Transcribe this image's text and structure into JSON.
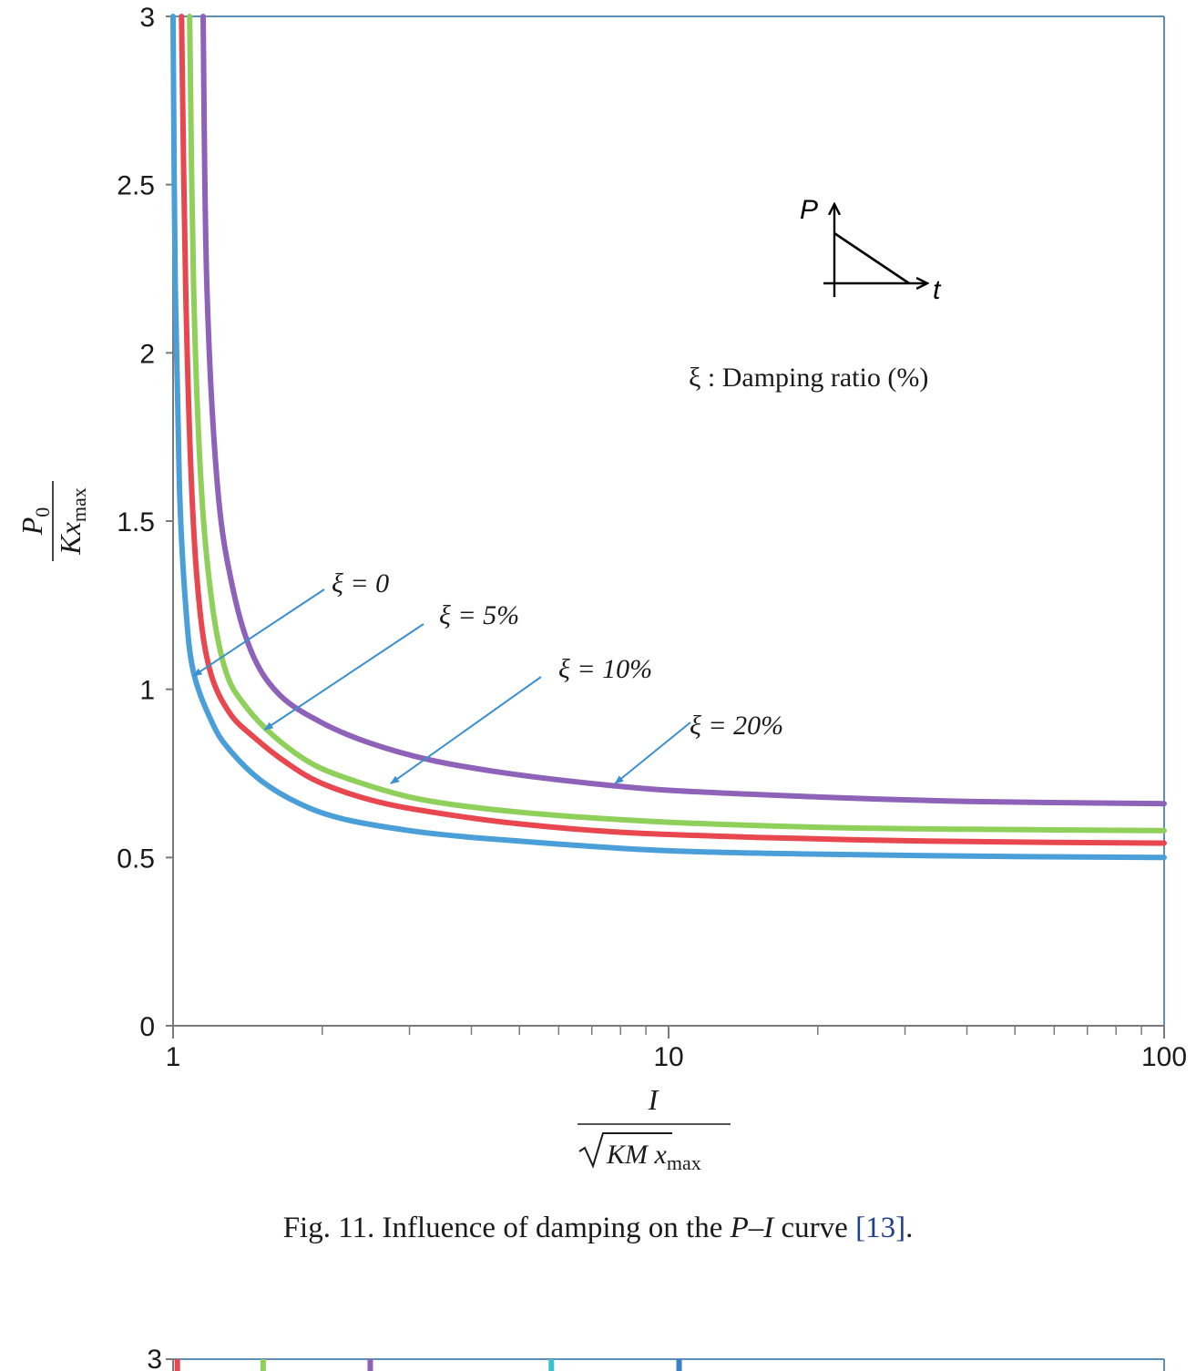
{
  "chart_data": [
    {
      "type": "line",
      "x_scale": "log",
      "xlim": [
        1,
        100
      ],
      "ylim": [
        0,
        3
      ],
      "x_ticks": [
        "1",
        "10",
        "100"
      ],
      "y_ticks": [
        "0",
        "0.5",
        "1",
        "1.5",
        "2",
        "2.5",
        "3"
      ],
      "ylabel": {
        "numerator": "P0",
        "num_main": "P",
        "num_sub": "0",
        "denominator": "Kxmax",
        "den_main": "Kx",
        "den_sub": "max"
      },
      "xlabel": {
        "numerator": "I",
        "denominator": "√(KM xmax)",
        "den_main": "KM x",
        "den_sub": "max"
      },
      "legend_note": "ξ : Damping ratio (%)",
      "inset": {
        "p_label": "P",
        "t_label": "t"
      },
      "colors": {
        "axis": "#5b8fb9",
        "xi0": "#4a9fd8",
        "xi5": "#e8474f",
        "xi10": "#8ed05a",
        "xi20": "#8e62b8",
        "arrow": "#3a8fd0"
      },
      "series": [
        {
          "name": "ξ = 0",
          "color": "#4a9fd8",
          "points": [
            [
              1.0,
              3.0
            ],
            [
              1.01,
              2.2
            ],
            [
              1.03,
              1.6
            ],
            [
              1.06,
              1.25
            ],
            [
              1.1,
              1.05
            ],
            [
              1.2,
              0.9
            ],
            [
              1.3,
              0.82
            ],
            [
              1.5,
              0.73
            ],
            [
              1.8,
              0.66
            ],
            [
              2.2,
              0.615
            ],
            [
              3,
              0.58
            ],
            [
              4,
              0.56
            ],
            [
              6,
              0.54
            ],
            [
              10,
              0.52
            ],
            [
              20,
              0.51
            ],
            [
              50,
              0.503
            ],
            [
              100,
              0.5
            ]
          ]
        },
        {
          "name": "ξ = 5%",
          "color": "#e8474f",
          "points": [
            [
              1.04,
              3.0
            ],
            [
              1.06,
              2.2
            ],
            [
              1.09,
              1.6
            ],
            [
              1.13,
              1.25
            ],
            [
              1.19,
              1.05
            ],
            [
              1.3,
              0.93
            ],
            [
              1.45,
              0.86
            ],
            [
              1.7,
              0.78
            ],
            [
              2.0,
              0.72
            ],
            [
              2.6,
              0.665
            ],
            [
              3.5,
              0.63
            ],
            [
              5,
              0.6
            ],
            [
              8,
              0.575
            ],
            [
              15,
              0.56
            ],
            [
              30,
              0.55
            ],
            [
              60,
              0.545
            ],
            [
              100,
              0.543
            ]
          ]
        },
        {
          "name": "ξ = 10%",
          "color": "#8ed05a",
          "points": [
            [
              1.08,
              3.0
            ],
            [
              1.1,
              2.2
            ],
            [
              1.14,
              1.6
            ],
            [
              1.2,
              1.25
            ],
            [
              1.28,
              1.05
            ],
            [
              1.4,
              0.95
            ],
            [
              1.6,
              0.86
            ],
            [
              1.9,
              0.78
            ],
            [
              2.3,
              0.73
            ],
            [
              3,
              0.68
            ],
            [
              4,
              0.65
            ],
            [
              6,
              0.625
            ],
            [
              10,
              0.605
            ],
            [
              20,
              0.59
            ],
            [
              40,
              0.584
            ],
            [
              100,
              0.58
            ]
          ]
        },
        {
          "name": "ξ = 20%",
          "color": "#8e62b8",
          "points": [
            [
              1.15,
              3.0
            ],
            [
              1.17,
              2.2
            ],
            [
              1.23,
              1.6
            ],
            [
              1.32,
              1.3
            ],
            [
              1.45,
              1.1
            ],
            [
              1.65,
              0.98
            ],
            [
              2.0,
              0.9
            ],
            [
              2.5,
              0.84
            ],
            [
              3.3,
              0.79
            ],
            [
              4.5,
              0.755
            ],
            [
              6.5,
              0.725
            ],
            [
              10,
              0.7
            ],
            [
              20,
              0.68
            ],
            [
              40,
              0.667
            ],
            [
              100,
              0.66
            ]
          ]
        }
      ],
      "annotations": [
        {
          "text": "ξ = 0",
          "name": "ξ = 0",
          "target": [
            1.1,
            1.04
          ]
        },
        {
          "text": "ξ = 5%",
          "name": "ξ = 5%",
          "target": [
            1.53,
            0.88
          ]
        },
        {
          "text": "ξ = 10%",
          "name": "ξ = 10%",
          "target": [
            2.75,
            0.72
          ]
        },
        {
          "text": "ξ = 20%",
          "name": "ξ = 20%",
          "target": [
            7.8,
            0.72
          ]
        }
      ]
    },
    {
      "type": "line",
      "partial": true,
      "y_ticks": [
        "3"
      ],
      "colors": {
        "axis": "#5b8fb9",
        "s1": "#e8474f",
        "s2": "#8ed05a",
        "s3": "#8e62b8",
        "s4": "#3fc0d0",
        "s5": "#3a7fc8"
      },
      "visible_curve_positions_x_log": [
        1.02,
        1.52,
        2.5,
        5.8,
        10.5
      ]
    }
  ],
  "caption": {
    "prefix": "Fig. 11.  Influence of damping on the ",
    "italic": "P–I",
    "suffix": " curve ",
    "ref": "[13]",
    "end": "."
  }
}
